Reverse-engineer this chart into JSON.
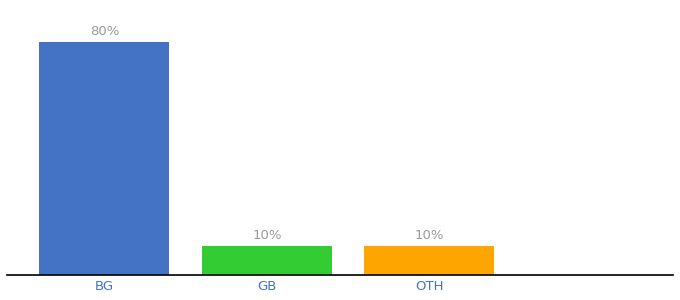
{
  "categories": [
    "BG",
    "GB",
    "OTH"
  ],
  "values": [
    80,
    10,
    10
  ],
  "bar_colors": [
    "#4472C4",
    "#33CC33",
    "#FFA500"
  ],
  "labels": [
    "80%",
    "10%",
    "10%"
  ],
  "ylim": [
    0,
    92
  ],
  "background_color": "#ffffff",
  "label_color": "#999999",
  "tick_color": "#4472C4",
  "bar_width": 0.8,
  "label_fontsize": 9.5,
  "tick_fontsize": 9.5
}
